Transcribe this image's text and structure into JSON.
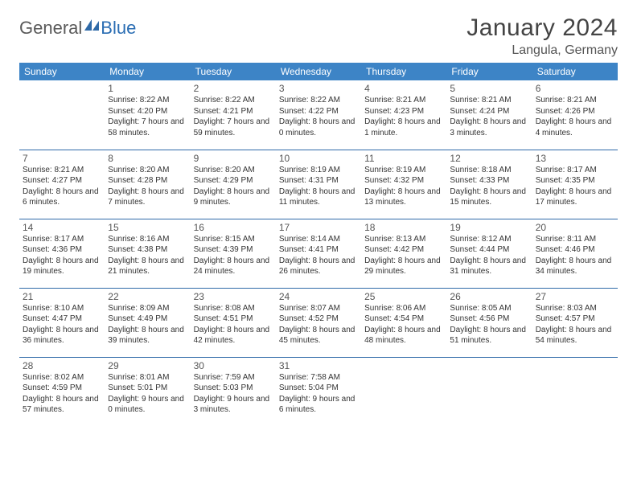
{
  "logo": {
    "general": "General",
    "blue": "Blue"
  },
  "title": "January 2024",
  "location": "Langula, Germany",
  "colors": {
    "header_bg": "#3d84c6",
    "header_text": "#ffffff",
    "row_border": "#2f6aa8",
    "body_text": "#333333",
    "logo_blue": "#2a6db3",
    "logo_gray": "#5a5a5a"
  },
  "dayHeaders": [
    "Sunday",
    "Monday",
    "Tuesday",
    "Wednesday",
    "Thursday",
    "Friday",
    "Saturday"
  ],
  "weeks": [
    [
      null,
      {
        "n": "1",
        "sr": "8:22 AM",
        "ss": "4:20 PM",
        "dl": "7 hours and 58 minutes."
      },
      {
        "n": "2",
        "sr": "8:22 AM",
        "ss": "4:21 PM",
        "dl": "7 hours and 59 minutes."
      },
      {
        "n": "3",
        "sr": "8:22 AM",
        "ss": "4:22 PM",
        "dl": "8 hours and 0 minutes."
      },
      {
        "n": "4",
        "sr": "8:21 AM",
        "ss": "4:23 PM",
        "dl": "8 hours and 1 minute."
      },
      {
        "n": "5",
        "sr": "8:21 AM",
        "ss": "4:24 PM",
        "dl": "8 hours and 3 minutes."
      },
      {
        "n": "6",
        "sr": "8:21 AM",
        "ss": "4:26 PM",
        "dl": "8 hours and 4 minutes."
      }
    ],
    [
      {
        "n": "7",
        "sr": "8:21 AM",
        "ss": "4:27 PM",
        "dl": "8 hours and 6 minutes."
      },
      {
        "n": "8",
        "sr": "8:20 AM",
        "ss": "4:28 PM",
        "dl": "8 hours and 7 minutes."
      },
      {
        "n": "9",
        "sr": "8:20 AM",
        "ss": "4:29 PM",
        "dl": "8 hours and 9 minutes."
      },
      {
        "n": "10",
        "sr": "8:19 AM",
        "ss": "4:31 PM",
        "dl": "8 hours and 11 minutes."
      },
      {
        "n": "11",
        "sr": "8:19 AM",
        "ss": "4:32 PM",
        "dl": "8 hours and 13 minutes."
      },
      {
        "n": "12",
        "sr": "8:18 AM",
        "ss": "4:33 PM",
        "dl": "8 hours and 15 minutes."
      },
      {
        "n": "13",
        "sr": "8:17 AM",
        "ss": "4:35 PM",
        "dl": "8 hours and 17 minutes."
      }
    ],
    [
      {
        "n": "14",
        "sr": "8:17 AM",
        "ss": "4:36 PM",
        "dl": "8 hours and 19 minutes."
      },
      {
        "n": "15",
        "sr": "8:16 AM",
        "ss": "4:38 PM",
        "dl": "8 hours and 21 minutes."
      },
      {
        "n": "16",
        "sr": "8:15 AM",
        "ss": "4:39 PM",
        "dl": "8 hours and 24 minutes."
      },
      {
        "n": "17",
        "sr": "8:14 AM",
        "ss": "4:41 PM",
        "dl": "8 hours and 26 minutes."
      },
      {
        "n": "18",
        "sr": "8:13 AM",
        "ss": "4:42 PM",
        "dl": "8 hours and 29 minutes."
      },
      {
        "n": "19",
        "sr": "8:12 AM",
        "ss": "4:44 PM",
        "dl": "8 hours and 31 minutes."
      },
      {
        "n": "20",
        "sr": "8:11 AM",
        "ss": "4:46 PM",
        "dl": "8 hours and 34 minutes."
      }
    ],
    [
      {
        "n": "21",
        "sr": "8:10 AM",
        "ss": "4:47 PM",
        "dl": "8 hours and 36 minutes."
      },
      {
        "n": "22",
        "sr": "8:09 AM",
        "ss": "4:49 PM",
        "dl": "8 hours and 39 minutes."
      },
      {
        "n": "23",
        "sr": "8:08 AM",
        "ss": "4:51 PM",
        "dl": "8 hours and 42 minutes."
      },
      {
        "n": "24",
        "sr": "8:07 AM",
        "ss": "4:52 PM",
        "dl": "8 hours and 45 minutes."
      },
      {
        "n": "25",
        "sr": "8:06 AM",
        "ss": "4:54 PM",
        "dl": "8 hours and 48 minutes."
      },
      {
        "n": "26",
        "sr": "8:05 AM",
        "ss": "4:56 PM",
        "dl": "8 hours and 51 minutes."
      },
      {
        "n": "27",
        "sr": "8:03 AM",
        "ss": "4:57 PM",
        "dl": "8 hours and 54 minutes."
      }
    ],
    [
      {
        "n": "28",
        "sr": "8:02 AM",
        "ss": "4:59 PM",
        "dl": "8 hours and 57 minutes."
      },
      {
        "n": "29",
        "sr": "8:01 AM",
        "ss": "5:01 PM",
        "dl": "9 hours and 0 minutes."
      },
      {
        "n": "30",
        "sr": "7:59 AM",
        "ss": "5:03 PM",
        "dl": "9 hours and 3 minutes."
      },
      {
        "n": "31",
        "sr": "7:58 AM",
        "ss": "5:04 PM",
        "dl": "9 hours and 6 minutes."
      },
      null,
      null,
      null
    ]
  ],
  "labels": {
    "sunrise": "Sunrise: ",
    "sunset": "Sunset: ",
    "daylight": "Daylight: "
  }
}
